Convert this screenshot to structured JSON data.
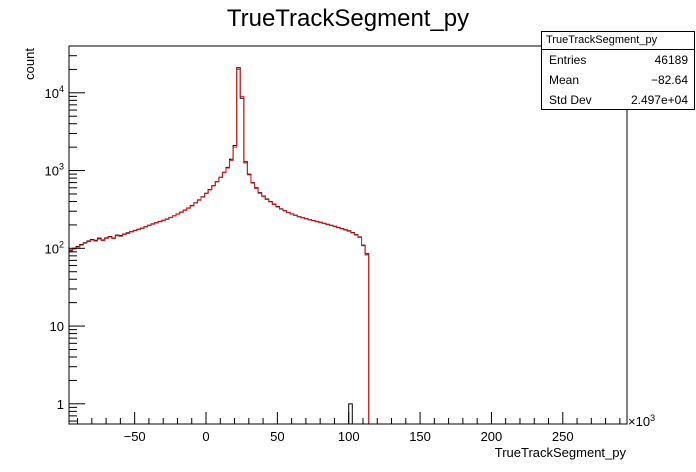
{
  "chart_data": {
    "type": "histogram",
    "title": "TrueTrackSegment_py",
    "xlabel": "TrueTrackSegment_py",
    "ylabel": "count",
    "x_exponent_label": "×10",
    "x_exponent_power": "3",
    "xlim": [
      -96,
      295
    ],
    "ylim": [
      0.55,
      40000
    ],
    "y_scale": "log",
    "grid": false,
    "x_ticks": [
      -50,
      0,
      50,
      100,
      150,
      200,
      250
    ],
    "x_tick_labels": [
      "−50",
      "0",
      "50",
      "100",
      "150",
      "200",
      "250"
    ],
    "y_ticks": [
      {
        "value": 1,
        "label": "1",
        "sup": ""
      },
      {
        "value": 10,
        "label": "10",
        "sup": ""
      },
      {
        "value": 100,
        "label": "10",
        "sup": "2"
      },
      {
        "value": 1000,
        "label": "10",
        "sup": "3"
      },
      {
        "value": 10000,
        "label": "10",
        "sup": "4"
      }
    ],
    "bin_width": 2.5,
    "series": [
      {
        "color": "#000000",
        "x_start": -96,
        "counts": [
          95,
          100,
          106,
          112,
          118,
          124,
          130,
          127,
          135,
          128,
          136,
          142,
          135,
          148,
          146,
          152,
          158,
          164,
          170,
          176,
          182,
          190,
          198,
          206,
          214,
          222,
          230,
          238,
          250,
          262,
          276,
          292,
          310,
          330,
          355,
          385,
          420,
          460,
          510,
          570,
          640,
          720,
          820,
          950,
          1100,
          1400,
          2100,
          21000,
          8500,
          1300,
          900,
          700,
          600,
          520,
          470,
          430,
          400,
          370,
          345,
          322,
          305,
          290,
          277,
          266,
          256,
          248,
          241,
          234,
          228,
          222,
          216,
          210,
          204,
          198,
          192,
          186,
          180,
          174,
          168,
          160,
          150,
          140,
          110,
          85,
          0,
          0,
          0,
          0,
          0,
          0,
          0,
          0,
          0,
          0,
          0,
          0,
          0,
          0,
          0,
          0,
          0,
          0,
          0,
          0,
          0,
          0,
          0,
          0,
          0,
          0,
          0,
          0,
          0,
          0,
          0,
          0,
          0,
          0,
          0,
          0,
          0,
          0,
          0,
          0,
          0,
          0,
          0,
          0,
          0,
          0,
          0,
          0,
          0,
          0,
          0,
          0,
          0,
          0,
          0,
          0,
          0,
          0,
          0,
          0,
          0,
          0,
          0,
          0,
          0,
          0,
          0,
          0,
          0,
          0,
          0,
          0,
          0,
          0,
          0,
          0,
          0,
          0,
          0,
          0,
          0,
          0,
          0,
          0,
          0,
          0,
          0,
          0,
          0,
          0,
          0,
          0
        ]
      },
      {
        "color": "#e31a1c",
        "x_start": -96,
        "counts": [
          92,
          98,
          104,
          110,
          116,
          122,
          128,
          124,
          132,
          126,
          134,
          140,
          133,
          145,
          143,
          150,
          155,
          162,
          168,
          174,
          180,
          188,
          196,
          204,
          212,
          220,
          228,
          236,
          248,
          260,
          274,
          290,
          308,
          328,
          352,
          382,
          415,
          455,
          505,
          565,
          635,
          715,
          815,
          940,
          1080,
          1350,
          2000,
          20000,
          9000,
          1250,
          880,
          690,
          590,
          510,
          465,
          425,
          395,
          365,
          340,
          318,
          302,
          288,
          275,
          264,
          254,
          246,
          239,
          232,
          226,
          220,
          214,
          208,
          202,
          196,
          190,
          184,
          178,
          172,
          166,
          158,
          148,
          138,
          108,
          82,
          0,
          0,
          0,
          0,
          0,
          0,
          0,
          0,
          0,
          0,
          0,
          0,
          0,
          0,
          0,
          0,
          0,
          0,
          0,
          0,
          0,
          0,
          0,
          0,
          0,
          0,
          0,
          0,
          0,
          0,
          0,
          0,
          0,
          0,
          0,
          0,
          0,
          0,
          0,
          0,
          0,
          0,
          0,
          0,
          0,
          0,
          0,
          0,
          0,
          0,
          0,
          0,
          0,
          0,
          0,
          0,
          0,
          0,
          0,
          0,
          0,
          0,
          0,
          0,
          0,
          0,
          0,
          0,
          0,
          0,
          0,
          0,
          0,
          0,
          0,
          0,
          0,
          0,
          0,
          0,
          0,
          0,
          0,
          0,
          0,
          0,
          0,
          0,
          0,
          0
        ]
      }
    ],
    "extra_bars": [
      {
        "x": 100,
        "width": 2.5,
        "count": 1,
        "color": "#000000"
      }
    ],
    "stats": {
      "name": "TrueTrackSegment_py",
      "rows": [
        {
          "label": "Entries",
          "value": "46189"
        },
        {
          "label": "Mean",
          "value": "−82.64"
        },
        {
          "label": "Std Dev",
          "value": "2.497e+04"
        }
      ]
    }
  }
}
